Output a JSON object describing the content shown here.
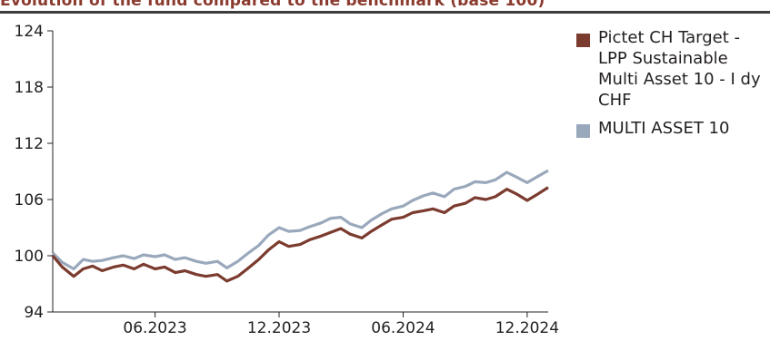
{
  "header": {
    "partial_text": "Evolution of the fund compared to the benchmark (base 100)"
  },
  "chart_data": {
    "type": "line",
    "title": "",
    "xlabel": "",
    "ylabel": "",
    "ylim": [
      94,
      124
    ],
    "yticks": [
      94,
      100,
      106,
      112,
      118,
      124
    ],
    "x_tick_labels": [
      {
        "label": "06.2023",
        "date": "2023-06-01"
      },
      {
        "label": "12.2023",
        "date": "2023-12-01"
      },
      {
        "label": "06.2024",
        "date": "2024-06-01"
      },
      {
        "label": "12.2024",
        "date": "2024-12-01"
      }
    ],
    "grid": false,
    "legend_position": "right",
    "series": [
      {
        "name": "Pictet CH Target - LPP Sustainable Multi Asset 10 - I dy CHF",
        "color": "#7b3b2f",
        "points": [
          [
            "2023-01-01",
            100.0
          ],
          [
            "2023-01-15",
            98.8
          ],
          [
            "2023-02-01",
            97.8
          ],
          [
            "2023-02-15",
            98.6
          ],
          [
            "2023-03-01",
            98.9
          ],
          [
            "2023-03-15",
            98.4
          ],
          [
            "2023-04-01",
            98.8
          ],
          [
            "2023-04-15",
            99.0
          ],
          [
            "2023-05-01",
            98.6
          ],
          [
            "2023-05-15",
            99.1
          ],
          [
            "2023-06-01",
            98.6
          ],
          [
            "2023-06-15",
            98.8
          ],
          [
            "2023-07-01",
            98.2
          ],
          [
            "2023-07-15",
            98.4
          ],
          [
            "2023-08-01",
            98.0
          ],
          [
            "2023-08-15",
            97.8
          ],
          [
            "2023-09-01",
            98.0
          ],
          [
            "2023-09-15",
            97.3
          ],
          [
            "2023-10-01",
            97.8
          ],
          [
            "2023-10-15",
            98.6
          ],
          [
            "2023-11-01",
            99.6
          ],
          [
            "2023-11-15",
            100.6
          ],
          [
            "2023-12-01",
            101.5
          ],
          [
            "2023-12-15",
            101.0
          ],
          [
            "2024-01-01",
            101.2
          ],
          [
            "2024-01-15",
            101.7
          ],
          [
            "2024-02-01",
            102.1
          ],
          [
            "2024-02-15",
            102.5
          ],
          [
            "2024-03-01",
            102.9
          ],
          [
            "2024-03-15",
            102.3
          ],
          [
            "2024-04-01",
            101.9
          ],
          [
            "2024-04-15",
            102.6
          ],
          [
            "2024-05-01",
            103.3
          ],
          [
            "2024-05-15",
            103.9
          ],
          [
            "2024-06-01",
            104.1
          ],
          [
            "2024-06-15",
            104.6
          ],
          [
            "2024-07-01",
            104.8
          ],
          [
            "2024-07-15",
            105.0
          ],
          [
            "2024-08-01",
            104.6
          ],
          [
            "2024-08-15",
            105.3
          ],
          [
            "2024-09-01",
            105.6
          ],
          [
            "2024-09-15",
            106.2
          ],
          [
            "2024-10-01",
            106.0
          ],
          [
            "2024-10-15",
            106.3
          ],
          [
            "2024-11-01",
            107.1
          ],
          [
            "2024-11-15",
            106.6
          ],
          [
            "2024-12-01",
            105.9
          ],
          [
            "2024-12-15",
            106.5
          ],
          [
            "2025-01-01",
            107.3
          ]
        ]
      },
      {
        "name": "MULTI ASSET 10",
        "color": "#9aa8bc",
        "points": [
          [
            "2023-01-01",
            100.3
          ],
          [
            "2023-01-15",
            99.3
          ],
          [
            "2023-02-01",
            98.6
          ],
          [
            "2023-02-15",
            99.6
          ],
          [
            "2023-03-01",
            99.4
          ],
          [
            "2023-03-15",
            99.5
          ],
          [
            "2023-04-01",
            99.8
          ],
          [
            "2023-04-15",
            100.0
          ],
          [
            "2023-05-01",
            99.7
          ],
          [
            "2023-05-15",
            100.1
          ],
          [
            "2023-06-01",
            99.9
          ],
          [
            "2023-06-15",
            100.1
          ],
          [
            "2023-07-01",
            99.6
          ],
          [
            "2023-07-15",
            99.8
          ],
          [
            "2023-08-01",
            99.4
          ],
          [
            "2023-08-15",
            99.2
          ],
          [
            "2023-09-01",
            99.4
          ],
          [
            "2023-09-15",
            98.7
          ],
          [
            "2023-10-01",
            99.4
          ],
          [
            "2023-10-15",
            100.2
          ],
          [
            "2023-11-01",
            101.1
          ],
          [
            "2023-11-15",
            102.2
          ],
          [
            "2023-12-01",
            103.0
          ],
          [
            "2023-12-15",
            102.6
          ],
          [
            "2024-01-01",
            102.7
          ],
          [
            "2024-01-15",
            103.1
          ],
          [
            "2024-02-01",
            103.5
          ],
          [
            "2024-02-15",
            104.0
          ],
          [
            "2024-03-01",
            104.1
          ],
          [
            "2024-03-15",
            103.4
          ],
          [
            "2024-04-01",
            103.0
          ],
          [
            "2024-04-15",
            103.8
          ],
          [
            "2024-05-01",
            104.5
          ],
          [
            "2024-05-15",
            105.0
          ],
          [
            "2024-06-01",
            105.3
          ],
          [
            "2024-06-15",
            105.9
          ],
          [
            "2024-07-01",
            106.4
          ],
          [
            "2024-07-15",
            106.7
          ],
          [
            "2024-08-01",
            106.3
          ],
          [
            "2024-08-15",
            107.1
          ],
          [
            "2024-09-01",
            107.4
          ],
          [
            "2024-09-15",
            107.9
          ],
          [
            "2024-10-01",
            107.8
          ],
          [
            "2024-10-15",
            108.1
          ],
          [
            "2024-11-01",
            108.9
          ],
          [
            "2024-11-15",
            108.4
          ],
          [
            "2024-12-01",
            107.8
          ],
          [
            "2024-12-15",
            108.4
          ],
          [
            "2025-01-01",
            109.1
          ]
        ]
      }
    ]
  }
}
